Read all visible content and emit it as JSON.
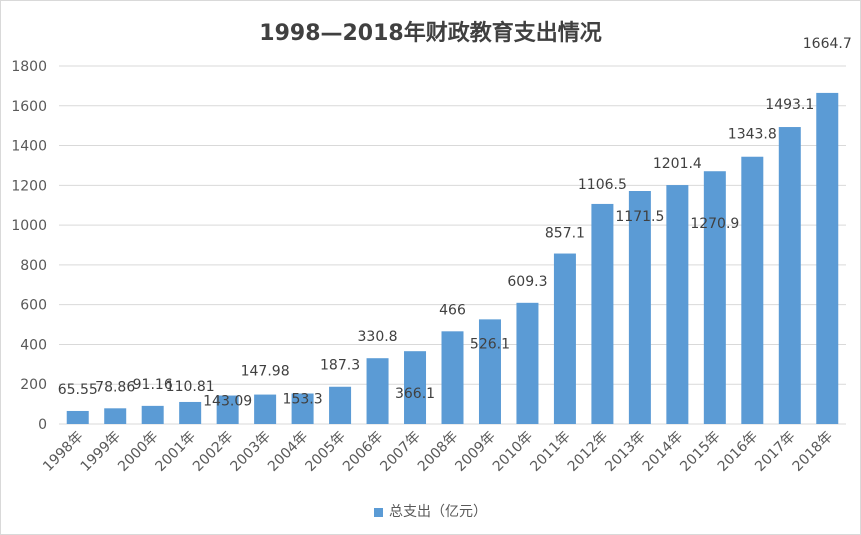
{
  "chart_data": {
    "type": "bar",
    "title": "1998—2018年财政教育支出情况",
    "categories": [
      "1998年",
      "1999年",
      "2000年",
      "2001年",
      "2002年",
      "2003年",
      "2004年",
      "2005年",
      "2006年",
      "2007年",
      "2008年",
      "2009年",
      "2010年",
      "2011年",
      "2012年",
      "2013年",
      "2014年",
      "2015年",
      "2016年",
      "2017年",
      "2018年"
    ],
    "series": [
      {
        "name": "总支出（亿元）",
        "values": [
          65.55,
          78.86,
          91.16,
          110.81,
          143.09,
          147.98,
          153.3,
          187.3,
          330.8,
          366.1,
          466,
          526.1,
          609.3,
          857.1,
          1106.5,
          1171.5,
          1201.4,
          1270.9,
          1343.8,
          1493.1,
          1664.7
        ]
      }
    ],
    "ylim": [
      0,
      1800
    ],
    "yticks": [
      0,
      200,
      400,
      600,
      800,
      1000,
      1200,
      1400,
      1600,
      1800
    ],
    "grid": true,
    "legend": "bottom",
    "color": "#5b9bd5",
    "xlabel": "",
    "ylabel": ""
  }
}
